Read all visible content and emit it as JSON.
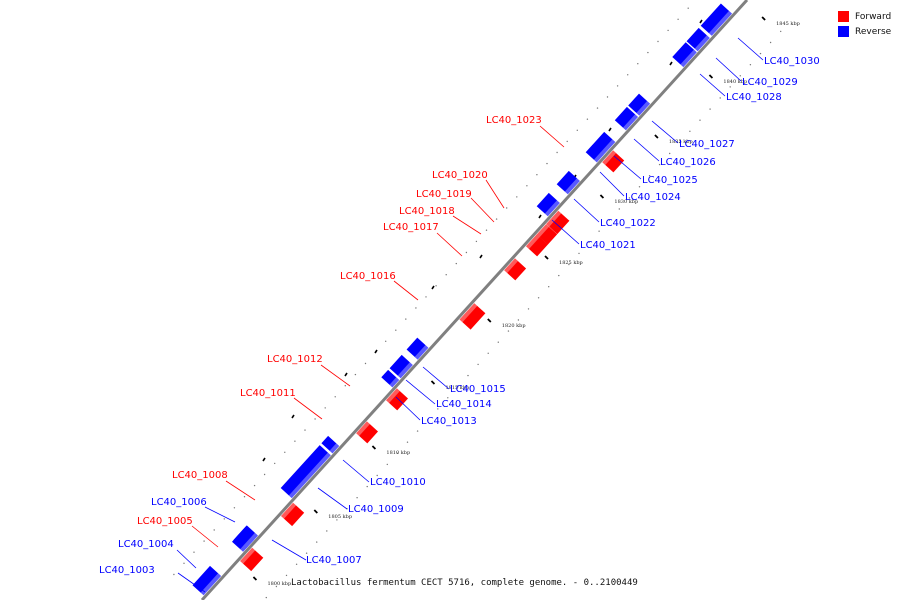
{
  "caption": "Lactobacillus fermentum CECT 5716, complete genome. - 0..2100449",
  "legend": [
    {
      "label": "Forward",
      "color": "#ff0000"
    },
    {
      "label": "Reverse",
      "color": "#0000ff"
    }
  ],
  "colors": {
    "forward": "#ff0000",
    "reverse": "#0000ff",
    "axis": "#808080"
  },
  "ticks": [
    "1800 kbp",
    "1805 kbp",
    "1810 kbp",
    "1815 kbp",
    "1820 kbp",
    "1825 kbp",
    "1830 kbp",
    "1835 kbp",
    "1840 kbp",
    "1845 kbp"
  ],
  "genes": [
    {
      "name": "LC40_1003",
      "strand": "reverse"
    },
    {
      "name": "LC40_1004",
      "strand": "reverse"
    },
    {
      "name": "LC40_1005",
      "strand": "forward"
    },
    {
      "name": "LC40_1006",
      "strand": "reverse"
    },
    {
      "name": "LC40_1007",
      "strand": "reverse"
    },
    {
      "name": "LC40_1008",
      "strand": "forward"
    },
    {
      "name": "LC40_1009",
      "strand": "reverse"
    },
    {
      "name": "LC40_1010",
      "strand": "reverse"
    },
    {
      "name": "LC40_1011",
      "strand": "forward"
    },
    {
      "name": "LC40_1012",
      "strand": "forward"
    },
    {
      "name": "LC40_1013",
      "strand": "reverse"
    },
    {
      "name": "LC40_1014",
      "strand": "reverse"
    },
    {
      "name": "LC40_1015",
      "strand": "reverse"
    },
    {
      "name": "LC40_1016",
      "strand": "forward"
    },
    {
      "name": "LC40_1017",
      "strand": "forward"
    },
    {
      "name": "LC40_1018",
      "strand": "forward"
    },
    {
      "name": "LC40_1019",
      "strand": "forward"
    },
    {
      "name": "LC40_1020",
      "strand": "forward"
    },
    {
      "name": "LC40_1021",
      "strand": "reverse"
    },
    {
      "name": "LC40_1022",
      "strand": "reverse"
    },
    {
      "name": "LC40_1023",
      "strand": "forward"
    },
    {
      "name": "LC40_1024",
      "strand": "reverse"
    },
    {
      "name": "LC40_1025",
      "strand": "reverse"
    },
    {
      "name": "LC40_1026",
      "strand": "reverse"
    },
    {
      "name": "LC40_1027",
      "strand": "reverse"
    },
    {
      "name": "LC40_1028",
      "strand": "reverse"
    },
    {
      "name": "LC40_1029",
      "strand": "reverse"
    },
    {
      "name": "LC40_1030",
      "strand": "reverse"
    }
  ]
}
